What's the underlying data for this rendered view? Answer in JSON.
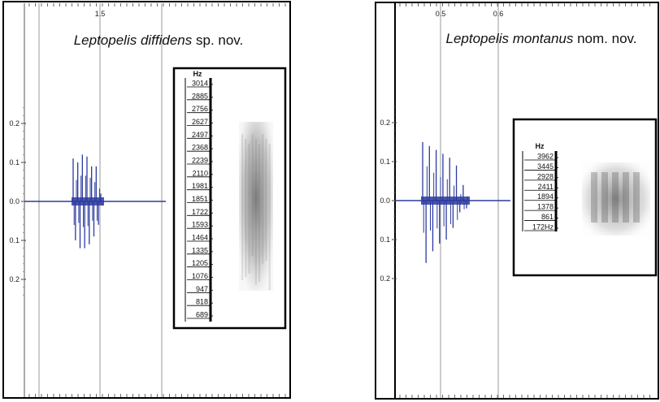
{
  "chart_data": [
    {
      "type": "line",
      "title_species": "Leptopelis diffidens",
      "title_suffix": " sp. nov.",
      "y_ticks": [
        {
          "label": "0.2",
          "value": 0.2
        },
        {
          "label": "0.1",
          "value": 0.1
        },
        {
          "label": "0.0",
          "value": 0.0
        },
        {
          "label": "0.1",
          "value": -0.1
        },
        {
          "label": "0.2",
          "value": -0.2
        }
      ],
      "ylim": [
        -0.25,
        0.25
      ],
      "x_ticks": [
        {
          "label": "1.5"
        }
      ],
      "waveform_peaks": [
        0.11,
        -0.1,
        0.1,
        -0.12,
        0.12,
        -0.12,
        0.115,
        -0.11,
        0.09,
        -0.09,
        0.09,
        -0.06,
        0.02
      ],
      "spectrogram": {
        "unit_label": "Hz",
        "freq_labels": [
          "3014",
          "2885",
          "2756",
          "2627",
          "2497",
          "2368",
          "2239",
          "2110",
          "1981",
          "1851",
          "1722",
          "1593",
          "1464",
          "1335",
          "1205",
          "1076",
          "947",
          "818",
          "689"
        ]
      },
      "wave_color": "#2b3a9e"
    },
    {
      "type": "line",
      "title_species": "Leptopelis montanus",
      "title_suffix": " nom. nov.",
      "y_ticks": [
        {
          "label": "0.2",
          "value": 0.2
        },
        {
          "label": "0.1",
          "value": 0.1
        },
        {
          "label": "0.0",
          "value": 0.0
        },
        {
          "label": "0.1",
          "value": -0.1
        },
        {
          "label": "0.2",
          "value": -0.2
        }
      ],
      "ylim": [
        -0.25,
        0.25
      ],
      "x_ticks": [
        {
          "label": "0.5"
        },
        {
          "label": "0.6"
        }
      ],
      "waveform_peaks": [
        0.15,
        -0.16,
        0.14,
        -0.13,
        0.13,
        -0.11,
        0.12,
        -0.1,
        0.11,
        -0.07,
        0.09,
        -0.03,
        0.04,
        -0.02
      ],
      "spectrogram": {
        "unit_label": "Hz",
        "freq_labels": [
          "3962",
          "3445",
          "2928",
          "2411",
          "1894",
          "1378",
          "861",
          "172Hz"
        ]
      },
      "wave_color": "#2b3a9e"
    }
  ]
}
